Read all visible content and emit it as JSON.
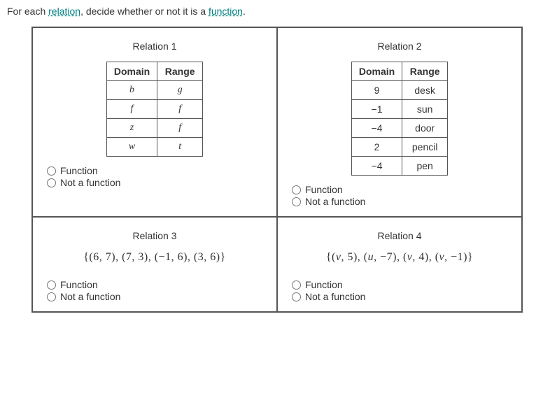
{
  "instruction": {
    "pre": "For each ",
    "link1": "relation",
    "mid": ", decide whether or not it is a ",
    "link2": "function",
    "post": "."
  },
  "headers": {
    "domain": "Domain",
    "range": "Range"
  },
  "choices": {
    "fn": "Function",
    "nfn": "Not a function"
  },
  "rel1": {
    "title": "Relation 1",
    "rows": [
      {
        "d": "b",
        "r": "g",
        "dIt": true,
        "rIt": true
      },
      {
        "d": "f",
        "r": "f",
        "dIt": true,
        "rIt": true
      },
      {
        "d": "z",
        "r": "f",
        "dIt": true,
        "rIt": true
      },
      {
        "d": "w",
        "r": "t",
        "dIt": true,
        "rIt": true
      }
    ]
  },
  "rel2": {
    "title": "Relation 2",
    "rows": [
      {
        "d": "9",
        "r": "desk"
      },
      {
        "d": "−1",
        "r": "sun"
      },
      {
        "d": "−4",
        "r": "door"
      },
      {
        "d": "2",
        "r": "pencil"
      },
      {
        "d": "−4",
        "r": "pen"
      }
    ]
  },
  "rel3": {
    "title": "Relation 3",
    "set": "{(6, 7), (7, 3), (−1, 6), (3, 6)}"
  },
  "rel4": {
    "title": "Relation 4",
    "set_html": "{(<i>v</i>, 5), (<i>u</i>, −7), (<i>v</i>, 4), (<i>v</i>, −1)}"
  }
}
